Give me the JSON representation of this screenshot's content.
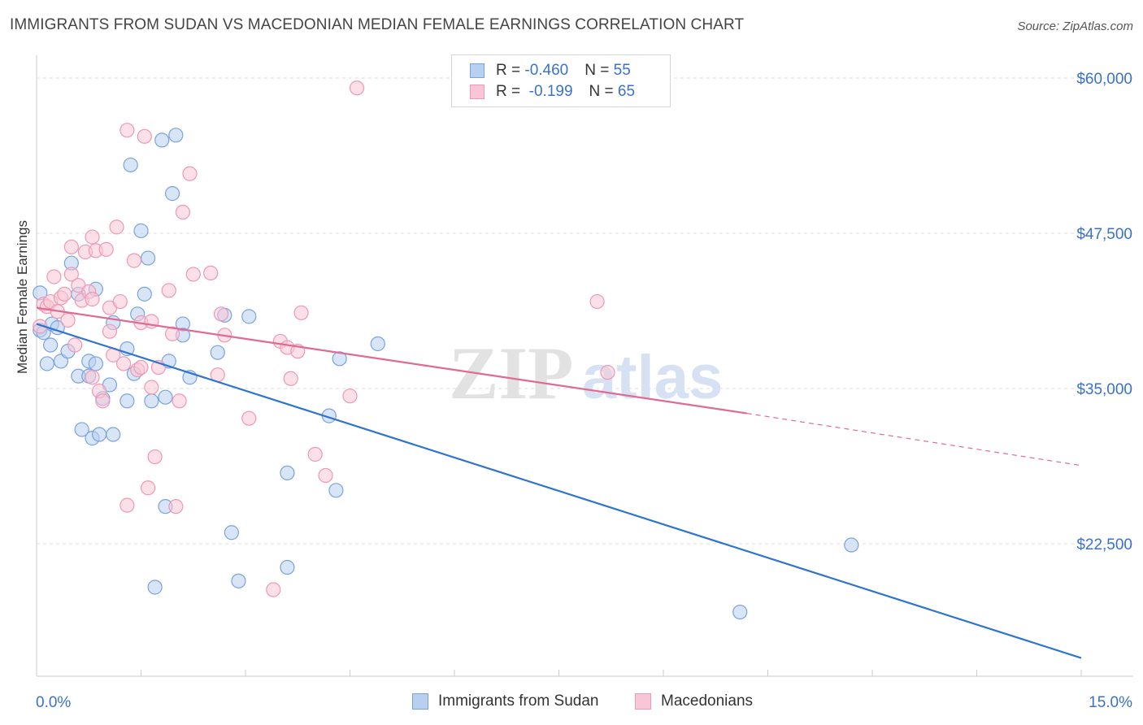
{
  "title": "IMMIGRANTS FROM SUDAN VS MACEDONIAN MEDIAN FEMALE EARNINGS CORRELATION CHART",
  "source": "Source: ZipAtlas.com",
  "watermark": {
    "zip": "ZIP",
    "atlas": "atlas"
  },
  "legend": {
    "rows": [
      {
        "r_label": "R = ",
        "r_value": "-0.460",
        "n_label": "N = ",
        "n_value": "55"
      },
      {
        "r_label": "R = ",
        "r_value": " -0.199",
        "n_label": "N = ",
        "n_value": "65"
      }
    ]
  },
  "colors": {
    "blue_fill": "#b8d0f0",
    "blue_stroke": "#7aa3dc",
    "blue_line": "#2f74d0",
    "pink_fill": "#f8c6d6",
    "pink_stroke": "#ee98b5",
    "pink_line": "#e06a92",
    "grid": "#dddddd",
    "axis_text": "#3a72c8"
  },
  "chart_data": {
    "type": "scatter",
    "title": "IMMIGRANTS FROM SUDAN VS MACEDONIAN MEDIAN FEMALE EARNINGS CORRELATION CHART",
    "xlabel": "",
    "ylabel": "Median Female Earnings",
    "xlim": [
      0,
      15
    ],
    "ylim": [
      12500,
      61500
    ],
    "x_tick_labels": [
      "0.0%",
      "15.0%"
    ],
    "y_ticks": [
      22500,
      35000,
      47500,
      60000
    ],
    "y_tick_labels": [
      "$22,500",
      "$35,000",
      "$47,500",
      "$60,000"
    ],
    "grid": true,
    "legend_position": "top-center",
    "series": [
      {
        "name": "Immigrants from Sudan",
        "color": "#b8d0f0",
        "r": -0.46,
        "n": 55,
        "trend": {
          "x": [
            0,
            15
          ],
          "y": [
            40200,
            13300
          ],
          "dashed_x": null
        },
        "points": [
          [
            0.05,
            39700
          ],
          [
            0.05,
            42700
          ],
          [
            0.1,
            39500
          ],
          [
            0.2,
            38500
          ],
          [
            0.22,
            40200
          ],
          [
            0.15,
            37000
          ],
          [
            0.35,
            37200
          ],
          [
            0.45,
            38000
          ],
          [
            0.5,
            45100
          ],
          [
            0.6,
            36000
          ],
          [
            0.6,
            42600
          ],
          [
            0.65,
            31700
          ],
          [
            0.75,
            37200
          ],
          [
            0.75,
            36000
          ],
          [
            0.8,
            31000
          ],
          [
            0.85,
            43000
          ],
          [
            0.85,
            37000
          ],
          [
            0.9,
            31300
          ],
          [
            0.95,
            34200
          ],
          [
            1.05,
            35300
          ],
          [
            1.1,
            31300
          ],
          [
            1.1,
            40300
          ],
          [
            1.3,
            38200
          ],
          [
            1.3,
            34000
          ],
          [
            1.35,
            53000
          ],
          [
            1.4,
            36200
          ],
          [
            1.45,
            41000
          ],
          [
            1.5,
            47700
          ],
          [
            1.55,
            42600
          ],
          [
            1.6,
            45500
          ],
          [
            1.65,
            34000
          ],
          [
            1.7,
            19000
          ],
          [
            1.8,
            55000
          ],
          [
            1.85,
            25500
          ],
          [
            1.85,
            34300
          ],
          [
            1.9,
            37200
          ],
          [
            1.95,
            50700
          ],
          [
            2.0,
            55400
          ],
          [
            2.1,
            40200
          ],
          [
            2.1,
            39300
          ],
          [
            2.2,
            35900
          ],
          [
            2.6,
            37900
          ],
          [
            2.7,
            40900
          ],
          [
            2.8,
            23400
          ],
          [
            2.9,
            19500
          ],
          [
            3.05,
            40800
          ],
          [
            3.6,
            28200
          ],
          [
            3.6,
            20600
          ],
          [
            4.2,
            32800
          ],
          [
            4.3,
            26800
          ],
          [
            4.35,
            37400
          ],
          [
            4.9,
            38600
          ],
          [
            11.7,
            22400
          ],
          [
            10.1,
            17000
          ],
          [
            0.3,
            39900
          ]
        ]
      },
      {
        "name": "Macedonians",
        "color": "#f8c6d6",
        "r": -0.199,
        "n": 65,
        "trend": {
          "x": [
            0,
            10.2
          ],
          "y": [
            41500,
            33000
          ],
          "dashed_x": [
            10.2,
            15
          ],
          "dashed_y": [
            33000,
            28800
          ]
        },
        "points": [
          [
            0.05,
            40000
          ],
          [
            0.1,
            41800
          ],
          [
            0.15,
            41600
          ],
          [
            0.2,
            42000
          ],
          [
            0.25,
            44000
          ],
          [
            0.3,
            41200
          ],
          [
            0.35,
            42300
          ],
          [
            0.4,
            42600
          ],
          [
            0.45,
            40500
          ],
          [
            0.5,
            46400
          ],
          [
            0.5,
            44200
          ],
          [
            0.55,
            38500
          ],
          [
            0.6,
            43300
          ],
          [
            0.65,
            42100
          ],
          [
            0.7,
            46000
          ],
          [
            0.75,
            42800
          ],
          [
            0.8,
            35900
          ],
          [
            0.85,
            46100
          ],
          [
            0.9,
            34800
          ],
          [
            0.95,
            34000
          ],
          [
            0.8,
            42200
          ],
          [
            0.8,
            47200
          ],
          [
            1.0,
            46200
          ],
          [
            1.05,
            41500
          ],
          [
            1.05,
            39600
          ],
          [
            1.1,
            37700
          ],
          [
            1.15,
            48000
          ],
          [
            1.2,
            42000
          ],
          [
            1.25,
            37000
          ],
          [
            1.3,
            55800
          ],
          [
            1.3,
            25600
          ],
          [
            1.4,
            45300
          ],
          [
            1.45,
            36500
          ],
          [
            1.5,
            40300
          ],
          [
            1.5,
            36700
          ],
          [
            1.55,
            55300
          ],
          [
            1.6,
            27000
          ],
          [
            1.65,
            40400
          ],
          [
            1.65,
            35100
          ],
          [
            1.7,
            29500
          ],
          [
            1.75,
            36700
          ],
          [
            1.9,
            42900
          ],
          [
            1.95,
            39400
          ],
          [
            2.0,
            25500
          ],
          [
            2.05,
            34000
          ],
          [
            2.1,
            49200
          ],
          [
            2.2,
            52300
          ],
          [
            2.25,
            44200
          ],
          [
            2.5,
            44300
          ],
          [
            2.6,
            36100
          ],
          [
            2.65,
            41000
          ],
          [
            2.7,
            39300
          ],
          [
            3.05,
            32600
          ],
          [
            3.4,
            18800
          ],
          [
            3.5,
            38800
          ],
          [
            3.6,
            38300
          ],
          [
            3.65,
            35800
          ],
          [
            3.75,
            38000
          ],
          [
            3.8,
            41100
          ],
          [
            4.0,
            29700
          ],
          [
            4.15,
            28000
          ],
          [
            4.5,
            34400
          ],
          [
            4.6,
            59200
          ],
          [
            8.05,
            42000
          ],
          [
            8.2,
            36300
          ]
        ]
      }
    ]
  },
  "bottom_legend": [
    {
      "label": "Immigrants from Sudan"
    },
    {
      "label": "Macedonians"
    }
  ]
}
